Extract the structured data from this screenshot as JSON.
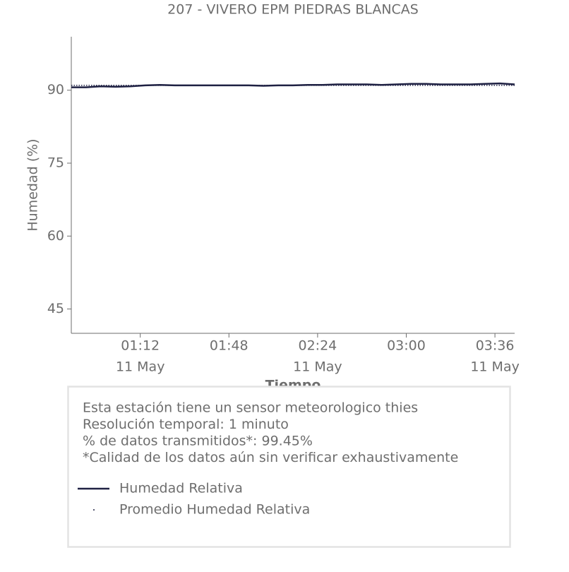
{
  "chart_data": {
    "type": "line",
    "title": "207 - VIVERO EPM PIEDRAS BLANCAS",
    "x_label": "Tiempo",
    "y_label": "Humedad (%)",
    "x": [
      "00:44",
      "00:50",
      "00:56",
      "01:02",
      "01:08",
      "01:14",
      "01:20",
      "01:26",
      "01:32",
      "01:38",
      "01:44",
      "01:50",
      "01:56",
      "02:02",
      "02:08",
      "02:14",
      "02:20",
      "02:26",
      "02:32",
      "02:38",
      "02:44",
      "02:50",
      "02:56",
      "03:02",
      "03:08",
      "03:14",
      "03:20",
      "03:26",
      "03:32",
      "03:38",
      "03:44"
    ],
    "series": [
      {
        "name": "Humedad Relativa",
        "color": "#1f2143",
        "style": "solid",
        "values": [
          90.6,
          90.6,
          90.8,
          90.7,
          90.8,
          91.0,
          91.1,
          91.0,
          91.0,
          91.0,
          91.0,
          91.0,
          91.0,
          90.9,
          91.0,
          91.0,
          91.1,
          91.1,
          91.2,
          91.2,
          91.2,
          91.1,
          91.2,
          91.3,
          91.3,
          91.2,
          91.2,
          91.2,
          91.3,
          91.4,
          91.2
        ]
      },
      {
        "name": "Promedio Humedad Relativa",
        "color": "#1f2143",
        "style": "dotted",
        "values": [
          91.0,
          91.0,
          91.0,
          91.0,
          91.0,
          91.0,
          91.0,
          91.0,
          91.0,
          91.0,
          91.0,
          91.0,
          91.0,
          91.0,
          91.0,
          91.0,
          91.0,
          91.0,
          91.0,
          91.0,
          91.0,
          91.0,
          91.0,
          91.0,
          91.0,
          91.0,
          91.0,
          91.0,
          91.0,
          91.0,
          91.0
        ]
      }
    ],
    "xlim": [
      "00:44",
      "03:44"
    ],
    "xticks": [
      "01:12",
      "01:48",
      "02:24",
      "03:00",
      "03:36"
    ],
    "xtick_dates": [
      "11 May",
      null,
      "11 May",
      null,
      "11 May"
    ],
    "ylim": [
      40,
      101
    ],
    "yticks": [
      45,
      60,
      75,
      90
    ],
    "grid": false,
    "info": [
      "Esta estación tiene un sensor meteorologico thies",
      "Resolución temporal: 1 minuto",
      "% de datos transmitidos*: 99.45%",
      "*Calidad de los datos aún sin verificar exhaustivamente"
    ]
  }
}
